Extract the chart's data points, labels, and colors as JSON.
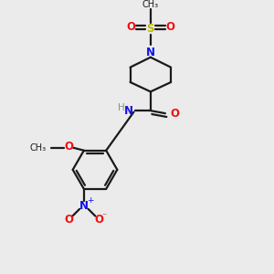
{
  "bg_color": "#ebebeb",
  "atom_colors": {
    "C": "#1a1a1a",
    "H": "#7a9a8a",
    "N": "#1010ee",
    "O": "#ee1010",
    "S": "#bbbb00"
  },
  "line_color": "#1a1a1a",
  "line_width": 1.6
}
